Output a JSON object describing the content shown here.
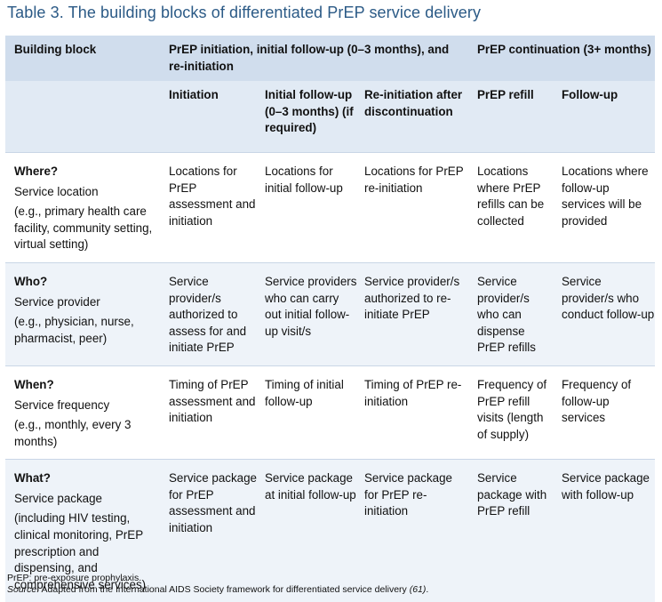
{
  "title": "Table 3. The building blocks of differentiated PrEP service delivery",
  "header_row1": {
    "col0": "Building block",
    "group1": "PrEP initiation, initial follow-up (0–3 months), and re-initiation",
    "group2": "PrEP continuation (3+ months)"
  },
  "header_row2": {
    "initiation": "Initiation",
    "followup": "Initial follow-up (0–3 months) (if required)",
    "reinit": "Re-initiation after discontinuation",
    "refill": "PrEP refill",
    "followup2": "Follow-up"
  },
  "rows": [
    {
      "question": "Where?",
      "label": "Service location",
      "example": "(e.g., primary health care facility, community setting, virtual setting)",
      "cells": [
        "Locations for PrEP assessment and initiation",
        "Locations for initial follow-up",
        "Locations for PrEP re-initiation",
        "Locations where PrEP refills can be collected",
        "Locations where follow-up services will be provided"
      ]
    },
    {
      "question": "Who?",
      "label": "Service provider",
      "example": "(e.g., physician, nurse, pharmacist, peer)",
      "cells": [
        "Service provider/s authorized to assess for and initiate PrEP",
        "Service providers who can carry out initial follow-up visit/s",
        "Service provider/s authorized to re-initiate PrEP",
        "Service provider/s who can dispense PrEP refills",
        "Service provider/s who conduct follow-up"
      ]
    },
    {
      "question": "When?",
      "label": "Service frequency",
      "example": "(e.g., monthly, every 3 months)",
      "cells": [
        "Timing of PrEP assessment and initiation",
        "Timing of initial follow-up",
        "Timing of PrEP re-initiation",
        "Frequency of PrEP refill visits (length of supply)",
        "Frequency of follow-up services"
      ]
    },
    {
      "question": "What?",
      "label": "Service package",
      "example": "(including HIV testing, clinical monitoring, PrEP prescription and dispensing, and comprehensive services)",
      "cells": [
        "Service package for PrEP assessment and initiation",
        "Service package at initial follow-up",
        "Service package for PrEP re-initiation",
        "Service package with PrEP refill",
        "Service package with follow-up"
      ]
    }
  ],
  "footnote": {
    "abbrev": "PrEP: pre-exposure prophylaxis.",
    "source_label": "Source:",
    "source_text": " Adapted from the International AIDS Society framework for differentiated service delivery ",
    "source_ref": "(61)",
    "source_end": "."
  }
}
